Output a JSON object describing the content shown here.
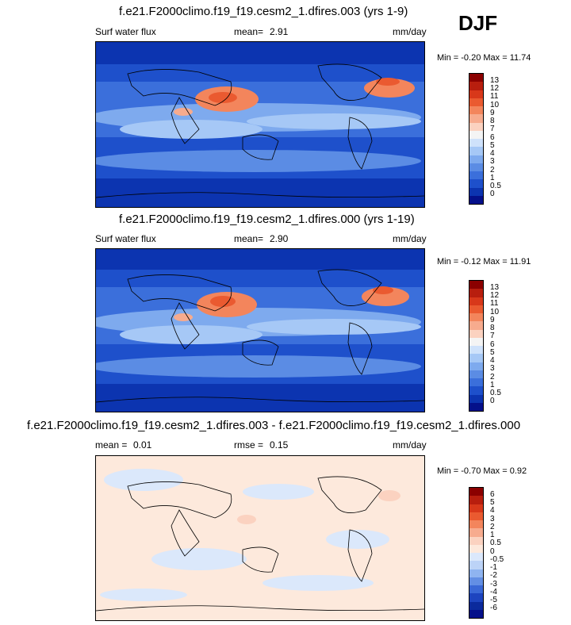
{
  "season": "DJF",
  "panels": [
    {
      "title": "f.e21.F2000climo.f19_f19.cesm2_1.dfires.003 (yrs 1-9)",
      "left_label": "Surf water flux",
      "stat_label": "mean=",
      "stat_value": "2.91",
      "units": "mm/day",
      "minmax": "Min =  -0.20 Max =  11.74",
      "colorbar": {
        "levels": [
          "13",
          "12",
          "11",
          "10",
          "9",
          "8",
          "7",
          "6",
          "5",
          "4",
          "3",
          "2",
          "1",
          "0.5",
          "0"
        ],
        "colors": [
          "#8b0000",
          "#b81e0e",
          "#d8381a",
          "#ea5a30",
          "#f3855c",
          "#f7ab8e",
          "#fbd2c0",
          "#f4f4f4",
          "#cfe2fb",
          "#a6c8f6",
          "#7eaaee",
          "#5b8ce4",
          "#3b6fdb",
          "#1e50cb",
          "#0c34b0",
          "#04108a"
        ]
      }
    },
    {
      "title": "f.e21.F2000climo.f19_f19.cesm2_1.dfires.000 (yrs 1-19)",
      "left_label": "Surf water flux",
      "stat_label": "mean=",
      "stat_value": "2.90",
      "units": "mm/day",
      "minmax": "Min =  -0.12 Max =  11.91",
      "colorbar": {
        "levels": [
          "13",
          "12",
          "11",
          "10",
          "9",
          "8",
          "7",
          "6",
          "5",
          "4",
          "3",
          "2",
          "1",
          "0.5",
          "0"
        ],
        "colors": [
          "#8b0000",
          "#b81e0e",
          "#d8381a",
          "#ea5a30",
          "#f3855c",
          "#f7ab8e",
          "#fbd2c0",
          "#f4f4f4",
          "#cfe2fb",
          "#a6c8f6",
          "#7eaaee",
          "#5b8ce4",
          "#3b6fdb",
          "#1e50cb",
          "#0c34b0",
          "#04108a"
        ]
      }
    },
    {
      "title": "f.e21.F2000climo.f19_f19.cesm2_1.dfires.003 - f.e21.F2000climo.f19_f19.cesm2_1.dfires.000",
      "left_label": "mean =",
      "left_value": "0.01",
      "stat_label": "rmse =",
      "stat_value": "0.15",
      "units": "mm/day",
      "minmax": "Min =  -0.70 Max =   0.92",
      "colorbar": {
        "levels": [
          "6",
          "5",
          "4",
          "3",
          "2",
          "1",
          "0.5",
          "0",
          "-0.5",
          "-1",
          "-2",
          "-3",
          "-4",
          "-5",
          "-6"
        ],
        "colors": [
          "#8b0000",
          "#b81e0e",
          "#d8381a",
          "#ea5a30",
          "#f3855c",
          "#f7ab8e",
          "#fbd2c0",
          "#fde9dc",
          "#dbe8fb",
          "#bcd3f7",
          "#8fb4f0",
          "#638fe4",
          "#3a68d6",
          "#1d44bf",
          "#0b2a9c",
          "#04108a"
        ]
      }
    }
  ]
}
